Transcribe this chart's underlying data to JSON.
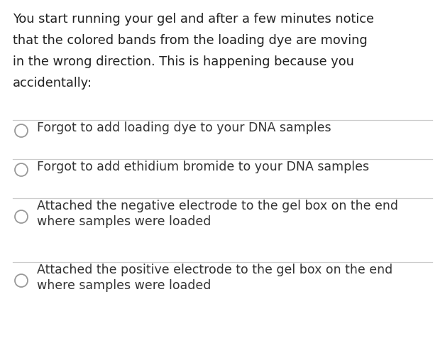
{
  "background_color": "#ffffff",
  "text_color": "#222222",
  "question_lines": [
    "You start running your gel and after a few minutes notice",
    "that the colored bands from the loading dye are moving",
    "in the wrong direction. This is happening because you",
    "accidentally:"
  ],
  "options": [
    [
      "Forgot to add loading dye to your DNA samples"
    ],
    [
      "Forgot to add ethidium bromide to your DNA samples"
    ],
    [
      "Attached the negative electrode to the gel box on the end",
      "where samples were loaded"
    ],
    [
      "Attached the positive electrode to the gel box on the end",
      "where samples were loaded"
    ]
  ],
  "option_color": "#333333",
  "circle_edge_color": "#999999",
  "line_color": "#cccccc",
  "question_fontsize": 12.8,
  "option_fontsize": 12.5,
  "fig_width": 6.27,
  "fig_height": 4.81,
  "dpi": 100
}
